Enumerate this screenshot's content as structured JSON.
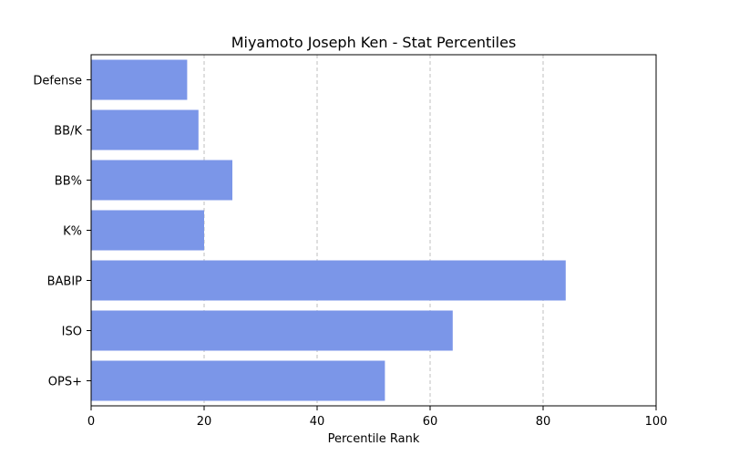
{
  "chart_data": {
    "type": "bar",
    "orientation": "horizontal",
    "title": "Miyamoto Joseph Ken - Stat Percentiles",
    "xlabel": "Percentile Rank",
    "ylabel": "",
    "categories": [
      "Defense",
      "BB/K",
      "BB%",
      "K%",
      "BABIP",
      "ISO",
      "OPS+"
    ],
    "values": [
      17,
      19,
      25,
      20,
      84,
      64,
      52
    ],
    "xlim": [
      0,
      100
    ],
    "xticks": [
      0,
      20,
      40,
      60,
      80,
      100
    ],
    "grid": "x-axis dashed",
    "bar_color": "#7b96e8"
  }
}
